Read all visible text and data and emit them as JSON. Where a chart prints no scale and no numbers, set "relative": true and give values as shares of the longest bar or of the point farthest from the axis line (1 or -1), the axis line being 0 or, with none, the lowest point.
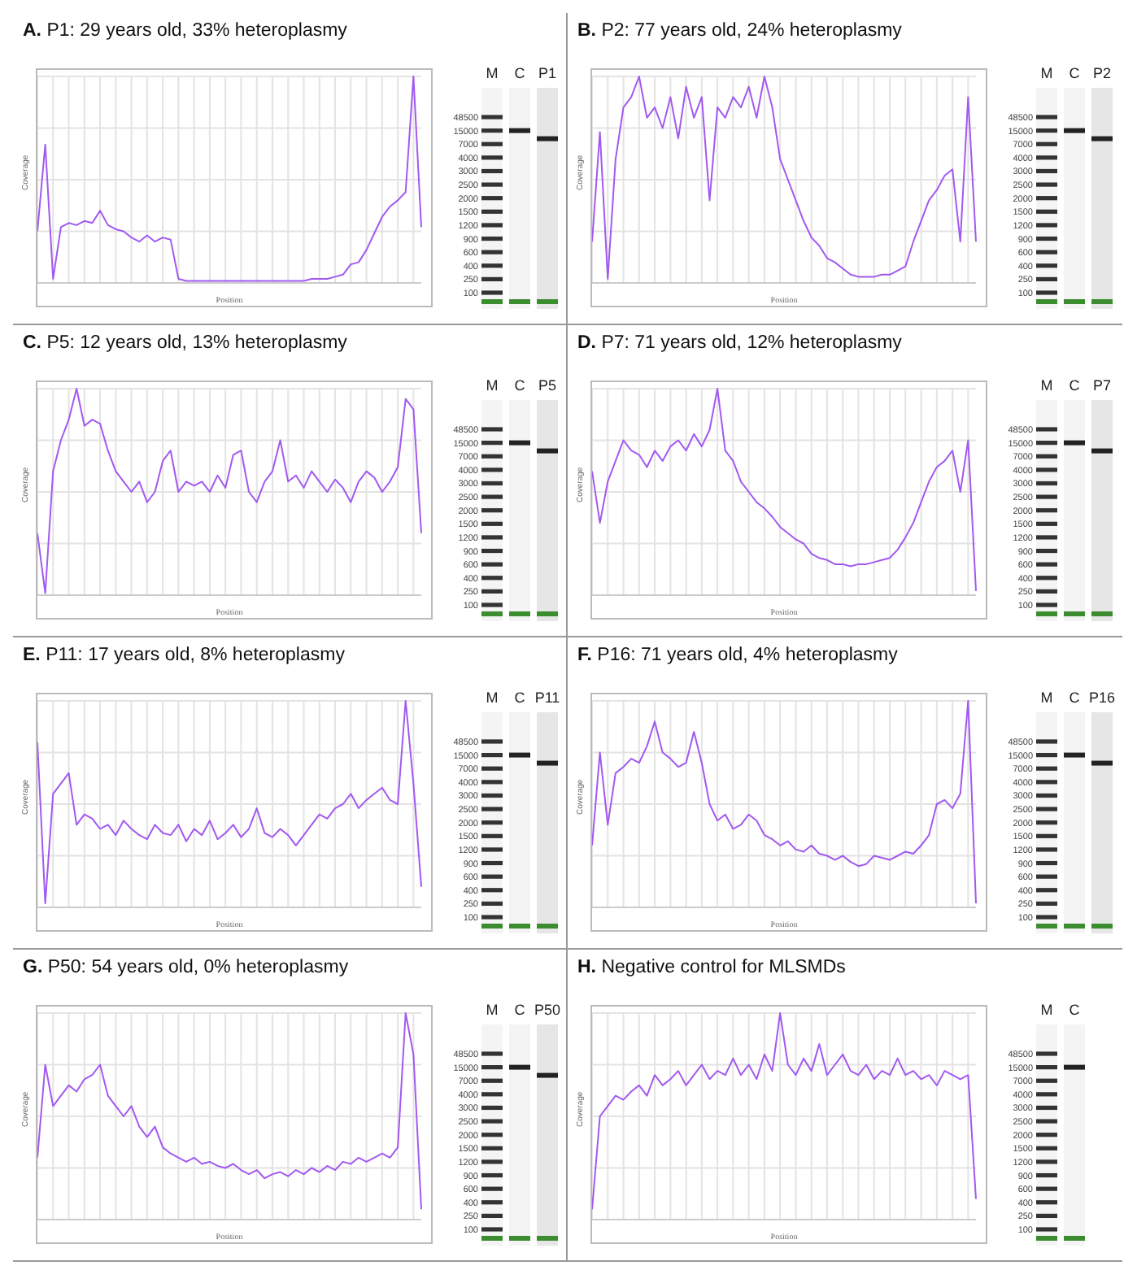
{
  "chart_data": [
    {
      "type": "line",
      "title": "A. P1: 29 years old, 33% heteroplasmy",
      "xlabel": "Position",
      "ylabel": "Coverage",
      "relative": true,
      "grid": true,
      "tick_labels": false,
      "color": "#a259f0",
      "categories": [
        null,
        null,
        null,
        null,
        null,
        null,
        null,
        null,
        null,
        null,
        null,
        null,
        null,
        null,
        null,
        null,
        null,
        null,
        null,
        null,
        null,
        null,
        null,
        null,
        null,
        null,
        null,
        null,
        null,
        null,
        null,
        null,
        null,
        null,
        null,
        null,
        null,
        null,
        null,
        null,
        null,
        null,
        null,
        null,
        null,
        null,
        null,
        null,
        null,
        null
      ],
      "values": [
        0.25,
        0.67,
        0.02,
        0.27,
        0.29,
        0.28,
        0.3,
        0.29,
        0.35,
        0.28,
        0.26,
        0.25,
        0.22,
        0.2,
        0.23,
        0.2,
        0.22,
        0.21,
        0.02,
        0.01,
        0.01,
        0.01,
        0.01,
        0.01,
        0.01,
        0.01,
        0.01,
        0.01,
        0.01,
        0.01,
        0.01,
        0.01,
        0.01,
        0.01,
        0.01,
        0.02,
        0.02,
        0.02,
        0.03,
        0.04,
        0.09,
        0.1,
        0.16,
        0.24,
        0.32,
        0.37,
        0.4,
        0.44,
        1.0,
        0.27
      ],
      "annotations": [
        "48500",
        "15000",
        "7000",
        "4000",
        "3000",
        "2500",
        "2000",
        "1500",
        "1200",
        "900",
        "600",
        "400",
        "250",
        "100",
        "M",
        "C",
        "P1"
      ]
    },
    {
      "type": "line",
      "title": "B. P2: 77 years old, 24% heteroplasmy",
      "xlabel": "Position",
      "ylabel": "Coverage",
      "relative": true,
      "grid": true,
      "tick_labels": false,
      "color": "#a259f0",
      "categories": [
        null,
        null,
        null,
        null,
        null,
        null,
        null,
        null,
        null,
        null,
        null,
        null,
        null,
        null,
        null,
        null,
        null,
        null,
        null,
        null,
        null,
        null,
        null,
        null,
        null,
        null,
        null,
        null,
        null,
        null,
        null,
        null,
        null,
        null,
        null,
        null,
        null,
        null,
        null,
        null,
        null,
        null,
        null,
        null,
        null,
        null,
        null,
        null,
        null,
        null
      ],
      "values": [
        0.2,
        0.73,
        0.02,
        0.6,
        0.85,
        0.9,
        1.0,
        0.8,
        0.85,
        0.75,
        0.9,
        0.7,
        0.95,
        0.8,
        0.9,
        0.4,
        0.85,
        0.8,
        0.9,
        0.85,
        0.95,
        0.8,
        1.0,
        0.85,
        0.6,
        0.5,
        0.4,
        0.3,
        0.22,
        0.18,
        0.12,
        0.1,
        0.07,
        0.04,
        0.03,
        0.03,
        0.03,
        0.04,
        0.04,
        0.06,
        0.08,
        0.2,
        0.3,
        0.4,
        0.45,
        0.52,
        0.55,
        0.2,
        0.9,
        0.2
      ],
      "annotations": [
        "48500",
        "15000",
        "7000",
        "4000",
        "3000",
        "2500",
        "2000",
        "1500",
        "1200",
        "900",
        "600",
        "400",
        "250",
        "100",
        "M",
        "C",
        "P2"
      ]
    },
    {
      "type": "line",
      "title": "C. P5: 12 years old, 13% heteroplasmy",
      "xlabel": "Position",
      "ylabel": "Coverage",
      "relative": true,
      "grid": true,
      "tick_labels": false,
      "color": "#a259f0",
      "categories": [
        null,
        null,
        null,
        null,
        null,
        null,
        null,
        null,
        null,
        null,
        null,
        null,
        null,
        null,
        null,
        null,
        null,
        null,
        null,
        null,
        null,
        null,
        null,
        null,
        null,
        null,
        null,
        null,
        null,
        null,
        null,
        null,
        null,
        null,
        null,
        null,
        null,
        null,
        null,
        null,
        null,
        null,
        null,
        null,
        null,
        null,
        null,
        null,
        null,
        null
      ],
      "values": [
        0.3,
        0.01,
        0.6,
        0.75,
        0.85,
        1.0,
        0.82,
        0.85,
        0.83,
        0.7,
        0.6,
        0.55,
        0.5,
        0.55,
        0.45,
        0.5,
        0.65,
        0.7,
        0.5,
        0.55,
        0.53,
        0.55,
        0.5,
        0.58,
        0.52,
        0.68,
        0.7,
        0.5,
        0.45,
        0.55,
        0.6,
        0.75,
        0.55,
        0.58,
        0.52,
        0.6,
        0.55,
        0.5,
        0.56,
        0.52,
        0.45,
        0.55,
        0.6,
        0.57,
        0.5,
        0.55,
        0.62,
        0.95,
        0.9,
        0.3
      ],
      "annotations": [
        "48500",
        "15000",
        "7000",
        "4000",
        "3000",
        "2500",
        "2000",
        "1500",
        "1200",
        "900",
        "600",
        "400",
        "250",
        "100",
        "M",
        "C",
        "P5"
      ]
    },
    {
      "type": "line",
      "title": "D. P7: 71 years old, 12% heteroplasmy",
      "xlabel": "Position",
      "ylabel": "Coverage",
      "relative": true,
      "grid": true,
      "tick_labels": false,
      "color": "#a259f0",
      "categories": [
        null,
        null,
        null,
        null,
        null,
        null,
        null,
        null,
        null,
        null,
        null,
        null,
        null,
        null,
        null,
        null,
        null,
        null,
        null,
        null,
        null,
        null,
        null,
        null,
        null,
        null,
        null,
        null,
        null,
        null,
        null,
        null,
        null,
        null,
        null,
        null,
        null,
        null,
        null,
        null,
        null,
        null,
        null,
        null,
        null,
        null,
        null,
        null,
        null,
        null
      ],
      "values": [
        0.6,
        0.35,
        0.55,
        0.65,
        0.75,
        0.7,
        0.68,
        0.62,
        0.7,
        0.65,
        0.72,
        0.75,
        0.7,
        0.78,
        0.72,
        0.8,
        1.0,
        0.7,
        0.65,
        0.55,
        0.5,
        0.45,
        0.42,
        0.38,
        0.33,
        0.3,
        0.27,
        0.25,
        0.2,
        0.18,
        0.17,
        0.15,
        0.15,
        0.14,
        0.15,
        0.15,
        0.16,
        0.17,
        0.18,
        0.22,
        0.28,
        0.35,
        0.45,
        0.55,
        0.62,
        0.65,
        0.7,
        0.5,
        0.75,
        0.02
      ],
      "annotations": [
        "48500",
        "15000",
        "7000",
        "4000",
        "3000",
        "2500",
        "2000",
        "1500",
        "1200",
        "900",
        "600",
        "400",
        "250",
        "100",
        "M",
        "C",
        "P7"
      ]
    },
    {
      "type": "line",
      "title": "E. P11: 17 years old, 8% heteroplasmy",
      "xlabel": "Position",
      "ylabel": "Coverage",
      "relative": true,
      "grid": true,
      "tick_labels": false,
      "color": "#a259f0",
      "categories": [
        null,
        null,
        null,
        null,
        null,
        null,
        null,
        null,
        null,
        null,
        null,
        null,
        null,
        null,
        null,
        null,
        null,
        null,
        null,
        null,
        null,
        null,
        null,
        null,
        null,
        null,
        null,
        null,
        null,
        null,
        null,
        null,
        null,
        null,
        null,
        null,
        null,
        null,
        null,
        null,
        null,
        null,
        null,
        null,
        null,
        null,
        null,
        null,
        null,
        null
      ],
      "values": [
        0.8,
        0.02,
        0.55,
        0.6,
        0.65,
        0.4,
        0.45,
        0.43,
        0.38,
        0.4,
        0.35,
        0.42,
        0.38,
        0.35,
        0.33,
        0.4,
        0.36,
        0.35,
        0.4,
        0.32,
        0.38,
        0.35,
        0.42,
        0.33,
        0.36,
        0.4,
        0.34,
        0.38,
        0.48,
        0.36,
        0.34,
        0.38,
        0.35,
        0.3,
        0.35,
        0.4,
        0.45,
        0.43,
        0.48,
        0.5,
        0.55,
        0.48,
        0.52,
        0.55,
        0.58,
        0.52,
        0.5,
        1.0,
        0.6,
        0.1
      ],
      "annotations": [
        "48500",
        "15000",
        "7000",
        "4000",
        "3000",
        "2500",
        "2000",
        "1500",
        "1200",
        "900",
        "600",
        "400",
        "250",
        "100",
        "M",
        "C",
        "P11"
      ]
    },
    {
      "type": "line",
      "title": "F. P16: 71 years old, 4% heteroplasmy",
      "xlabel": "Position",
      "ylabel": "Coverage",
      "relative": true,
      "grid": true,
      "tick_labels": false,
      "color": "#a259f0",
      "categories": [
        null,
        null,
        null,
        null,
        null,
        null,
        null,
        null,
        null,
        null,
        null,
        null,
        null,
        null,
        null,
        null,
        null,
        null,
        null,
        null,
        null,
        null,
        null,
        null,
        null,
        null,
        null,
        null,
        null,
        null,
        null,
        null,
        null,
        null,
        null,
        null,
        null,
        null,
        null,
        null,
        null,
        null,
        null,
        null,
        null,
        null,
        null,
        null,
        null,
        null
      ],
      "values": [
        0.3,
        0.75,
        0.4,
        0.65,
        0.68,
        0.72,
        0.7,
        0.78,
        0.9,
        0.75,
        0.72,
        0.68,
        0.7,
        0.85,
        0.7,
        0.5,
        0.42,
        0.45,
        0.38,
        0.4,
        0.45,
        0.42,
        0.35,
        0.33,
        0.3,
        0.32,
        0.28,
        0.27,
        0.3,
        0.26,
        0.25,
        0.23,
        0.25,
        0.22,
        0.2,
        0.21,
        0.25,
        0.24,
        0.23,
        0.25,
        0.27,
        0.26,
        0.3,
        0.35,
        0.5,
        0.52,
        0.48,
        0.55,
        1.0,
        0.02
      ],
      "annotations": [
        "48500",
        "15000",
        "7000",
        "4000",
        "3000",
        "2500",
        "2000",
        "1500",
        "1200",
        "900",
        "600",
        "400",
        "250",
        "100",
        "M",
        "C",
        "P16"
      ]
    },
    {
      "type": "line",
      "title": "G. P50: 54 years old, 0% heteroplasmy",
      "xlabel": "Position",
      "ylabel": "Coverage",
      "relative": true,
      "grid": true,
      "tick_labels": false,
      "color": "#a259f0",
      "categories": [
        null,
        null,
        null,
        null,
        null,
        null,
        null,
        null,
        null,
        null,
        null,
        null,
        null,
        null,
        null,
        null,
        null,
        null,
        null,
        null,
        null,
        null,
        null,
        null,
        null,
        null,
        null,
        null,
        null,
        null,
        null,
        null,
        null,
        null,
        null,
        null,
        null,
        null,
        null,
        null,
        null,
        null,
        null,
        null,
        null,
        null,
        null,
        null,
        null,
        null
      ],
      "values": [
        0.3,
        0.75,
        0.55,
        0.6,
        0.65,
        0.62,
        0.68,
        0.7,
        0.75,
        0.6,
        0.55,
        0.5,
        0.55,
        0.45,
        0.4,
        0.45,
        0.35,
        0.32,
        0.3,
        0.28,
        0.3,
        0.27,
        0.28,
        0.26,
        0.25,
        0.27,
        0.24,
        0.22,
        0.24,
        0.2,
        0.22,
        0.23,
        0.21,
        0.24,
        0.22,
        0.25,
        0.23,
        0.26,
        0.24,
        0.28,
        0.27,
        0.3,
        0.28,
        0.3,
        0.32,
        0.3,
        0.35,
        1.0,
        0.8,
        0.05
      ],
      "annotations": [
        "48500",
        "15000",
        "7000",
        "4000",
        "3000",
        "2500",
        "2000",
        "1500",
        "1200",
        "900",
        "600",
        "400",
        "250",
        "100",
        "M",
        "C",
        "P50"
      ]
    },
    {
      "type": "line",
      "title": "H. Negative control for MLSMDs",
      "xlabel": "Position",
      "ylabel": "Coverage",
      "relative": true,
      "grid": true,
      "tick_labels": false,
      "color": "#a259f0",
      "categories": [
        null,
        null,
        null,
        null,
        null,
        null,
        null,
        null,
        null,
        null,
        null,
        null,
        null,
        null,
        null,
        null,
        null,
        null,
        null,
        null,
        null,
        null,
        null,
        null,
        null,
        null,
        null,
        null,
        null,
        null,
        null,
        null,
        null,
        null,
        null,
        null,
        null,
        null,
        null,
        null,
        null,
        null,
        null,
        null,
        null,
        null,
        null,
        null,
        null,
        null
      ],
      "values": [
        0.05,
        0.5,
        0.55,
        0.6,
        0.58,
        0.62,
        0.65,
        0.6,
        0.7,
        0.65,
        0.68,
        0.72,
        0.65,
        0.7,
        0.75,
        0.68,
        0.72,
        0.7,
        0.78,
        0.7,
        0.75,
        0.68,
        0.8,
        0.72,
        1.0,
        0.75,
        0.7,
        0.78,
        0.72,
        0.85,
        0.7,
        0.75,
        0.8,
        0.72,
        0.7,
        0.75,
        0.68,
        0.72,
        0.7,
        0.78,
        0.7,
        0.72,
        0.68,
        0.7,
        0.65,
        0.72,
        0.7,
        0.68,
        0.7,
        0.1
      ],
      "annotations": [
        "48500",
        "15000",
        "7000",
        "4000",
        "3000",
        "2500",
        "2000",
        "1500",
        "1200",
        "900",
        "600",
        "400",
        "250",
        "100",
        "M",
        "C"
      ]
    }
  ]
}
